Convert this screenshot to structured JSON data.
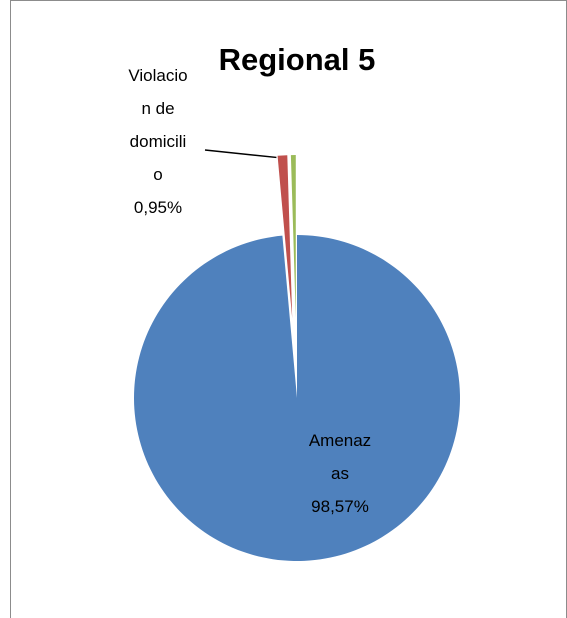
{
  "chart_data": {
    "type": "pie",
    "title": "Regional 5",
    "categories": [
      "Amenazas",
      "Violacion de domicilio",
      null
    ],
    "values": [
      98.57,
      0.95,
      0.48
    ],
    "value_labels": [
      "98,57%",
      "0,95%",
      null
    ],
    "colors": [
      "#4f81bd",
      "#c0504d",
      "#9bbb59"
    ]
  }
}
